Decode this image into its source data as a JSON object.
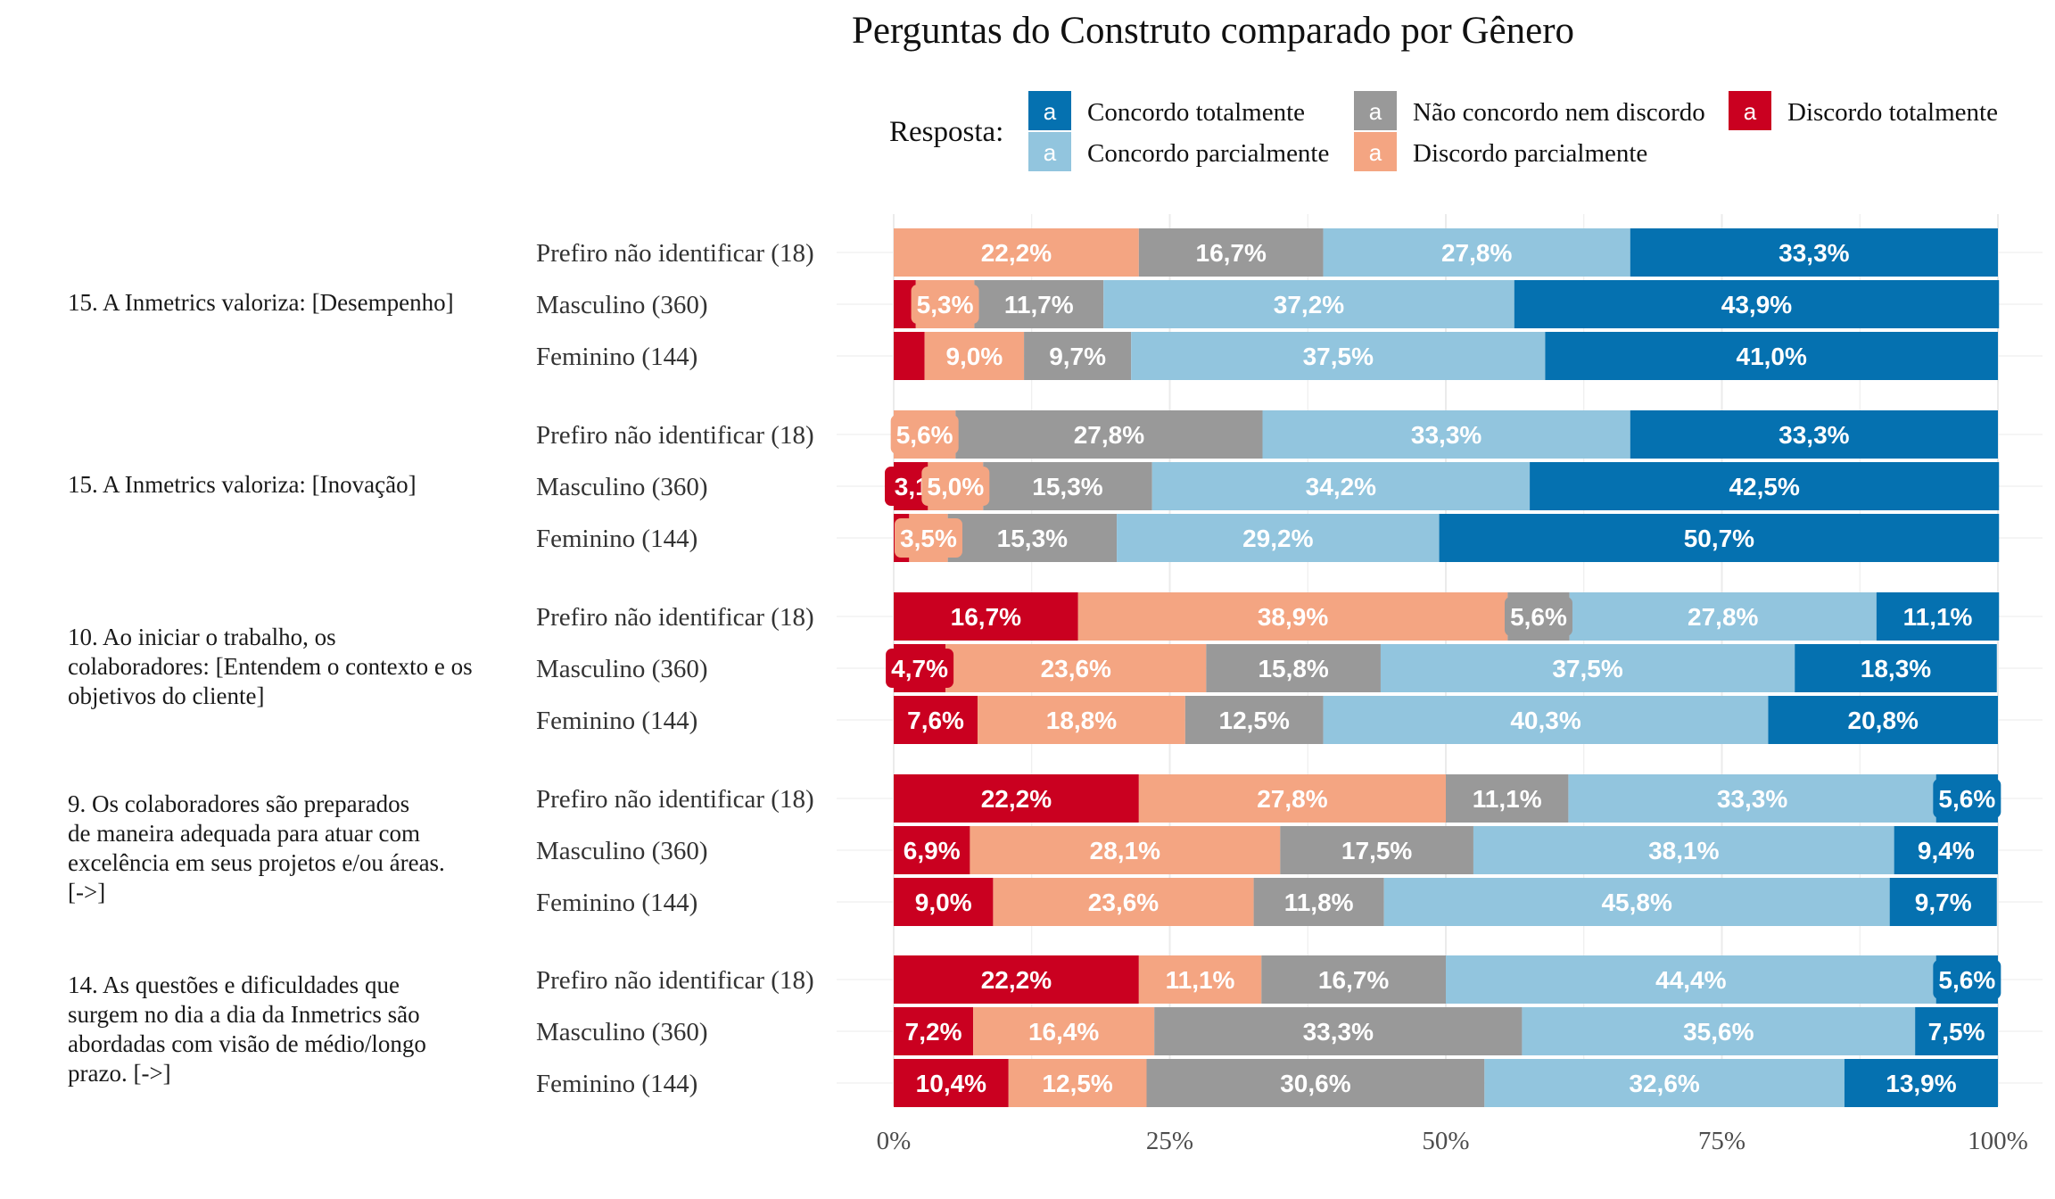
{
  "chart_data": {
    "type": "bar",
    "orientation": "horizontal-stacked-100",
    "title": "Perguntas do Construto comparado por Gênero",
    "legend": {
      "title": "Resposta:",
      "key_glyph": "a",
      "placement": "top",
      "entries": [
        {
          "name": "Concordo totalmente",
          "color": "#0571B0"
        },
        {
          "name": "Concordo parcialmente",
          "color": "#92C5DE"
        },
        {
          "name": "Não concordo nem discordo",
          "color": "#999999"
        },
        {
          "name": "Discordo parcialmente",
          "color": "#F4A582"
        },
        {
          "name": "Discordo totalmente",
          "color": "#CA0020"
        }
      ]
    },
    "stack_order": [
      "Discordo totalmente",
      "Discordo parcialmente",
      "Não concordo nem discordo",
      "Concordo parcialmente",
      "Concordo totalmente"
    ],
    "x_ticks": [
      "0%",
      "25%",
      "50%",
      "75%",
      "100%"
    ],
    "xlim": [
      0,
      100
    ],
    "grid": true,
    "groups": [
      {
        "question": "15. A Inmetrics valoriza: [Desempenho]",
        "rows": [
          {
            "label": "Prefiro não identificar (18)",
            "values": [
              0,
              22.2,
              16.7,
              27.8,
              33.3
            ],
            "labels": [
              "",
              "22,2%",
              "16,7%",
              "27,8%",
              "33,3%"
            ]
          },
          {
            "label": "Masculino (360)",
            "values": [
              2.0,
              5.3,
              11.7,
              37.2,
              43.9
            ],
            "labels": [
              "",
              "5,3%",
              "11,7%",
              "37,2%",
              "43,9%"
            ]
          },
          {
            "label": "Feminino (144)",
            "values": [
              2.8,
              9.0,
              9.7,
              37.5,
              41.0
            ],
            "labels": [
              "",
              "9,0%",
              "9,7%",
              "37,5%",
              "41,0%"
            ]
          }
        ]
      },
      {
        "question": "15. A Inmetrics valoriza: [Inovação]",
        "rows": [
          {
            "label": "Prefiro não identificar (18)",
            "values": [
              0,
              5.6,
              27.8,
              33.3,
              33.3
            ],
            "labels": [
              "",
              "5,6%",
              "27,8%",
              "33,3%",
              "33,3%"
            ]
          },
          {
            "label": "Masculino (360)",
            "values": [
              3.1,
              5.0,
              15.3,
              34.2,
              42.5
            ],
            "labels": [
              "3,1",
              "5,0%",
              "15,3%",
              "34,2%",
              "42,5%"
            ]
          },
          {
            "label": "Feminino (144)",
            "values": [
              1.4,
              3.5,
              15.3,
              29.2,
              50.7
            ],
            "labels": [
              "",
              "3,5%",
              "15,3%",
              "29,2%",
              "50,7%"
            ]
          }
        ]
      },
      {
        "question": "10. Ao iniciar o trabalho, os colaboradores: [Entendem o contexto e os objetivos do cliente]",
        "question_lines": [
          "10. Ao iniciar o trabalho, os",
          "colaboradores: [Entendem o contexto e os",
          "objetivos do cliente]"
        ],
        "rows": [
          {
            "label": "Prefiro não identificar (18)",
            "values": [
              16.7,
              38.9,
              5.6,
              27.8,
              11.1
            ],
            "labels": [
              "16,7%",
              "38,9%",
              "5,6%",
              "27,8%",
              "11,1%"
            ]
          },
          {
            "label": "Masculino (360)",
            "values": [
              4.7,
              23.6,
              15.8,
              37.5,
              18.3
            ],
            "labels": [
              "4,7%",
              "23,6%",
              "15,8%",
              "37,5%",
              "18,3%"
            ]
          },
          {
            "label": "Feminino (144)",
            "values": [
              7.6,
              18.8,
              12.5,
              40.3,
              20.8
            ],
            "labels": [
              "7,6%",
              "18,8%",
              "12,5%",
              "40,3%",
              "20,8%"
            ]
          }
        ]
      },
      {
        "question": "9. Os colaboradores são preparados de maneira adequada para atuar com excelência em seus projetos e/ou áreas. [->]",
        "question_lines": [
          "9. Os colaboradores são preparados",
          "de maneira adequada para atuar com",
          "excelência em seus projetos e/ou áreas.",
          "[->]"
        ],
        "rows": [
          {
            "label": "Prefiro não identificar (18)",
            "values": [
              22.2,
              27.8,
              11.1,
              33.3,
              5.6
            ],
            "labels": [
              "22,2%",
              "27,8%",
              "11,1%",
              "33,3%",
              "5,6%"
            ]
          },
          {
            "label": "Masculino (360)",
            "values": [
              6.9,
              28.1,
              17.5,
              38.1,
              9.4
            ],
            "labels": [
              "6,9%",
              "28,1%",
              "17,5%",
              "38,1%",
              "9,4%"
            ]
          },
          {
            "label": "Feminino (144)",
            "values": [
              9.0,
              23.6,
              11.8,
              45.8,
              9.7
            ],
            "labels": [
              "9,0%",
              "23,6%",
              "11,8%",
              "45,8%",
              "9,7%"
            ]
          }
        ]
      },
      {
        "question": "14. As questões e dificuldades que surgem no dia a dia da Inmetrics são abordadas com visão de médio/longo prazo. [->]",
        "question_lines": [
          "14. As questões e dificuldades que",
          "surgem no dia a dia da Inmetrics são",
          "abordadas com visão de médio/longo",
          "prazo. [->]"
        ],
        "rows": [
          {
            "label": "Prefiro não identificar (18)",
            "values": [
              22.2,
              11.1,
              16.7,
              44.4,
              5.6
            ],
            "labels": [
              "22,2%",
              "11,1%",
              "16,7%",
              "44,4%",
              "5,6%"
            ]
          },
          {
            "label": "Masculino (360)",
            "values": [
              7.2,
              16.4,
              33.3,
              35.6,
              7.5
            ],
            "labels": [
              "7,2%",
              "16,4%",
              "33,3%",
              "35,6%",
              "7,5%"
            ]
          },
          {
            "label": "Feminino (144)",
            "values": [
              10.4,
              12.5,
              30.6,
              32.6,
              13.9
            ],
            "labels": [
              "10,4%",
              "12,5%",
              "30,6%",
              "32,6%",
              "13,9%"
            ]
          }
        ]
      }
    ]
  }
}
